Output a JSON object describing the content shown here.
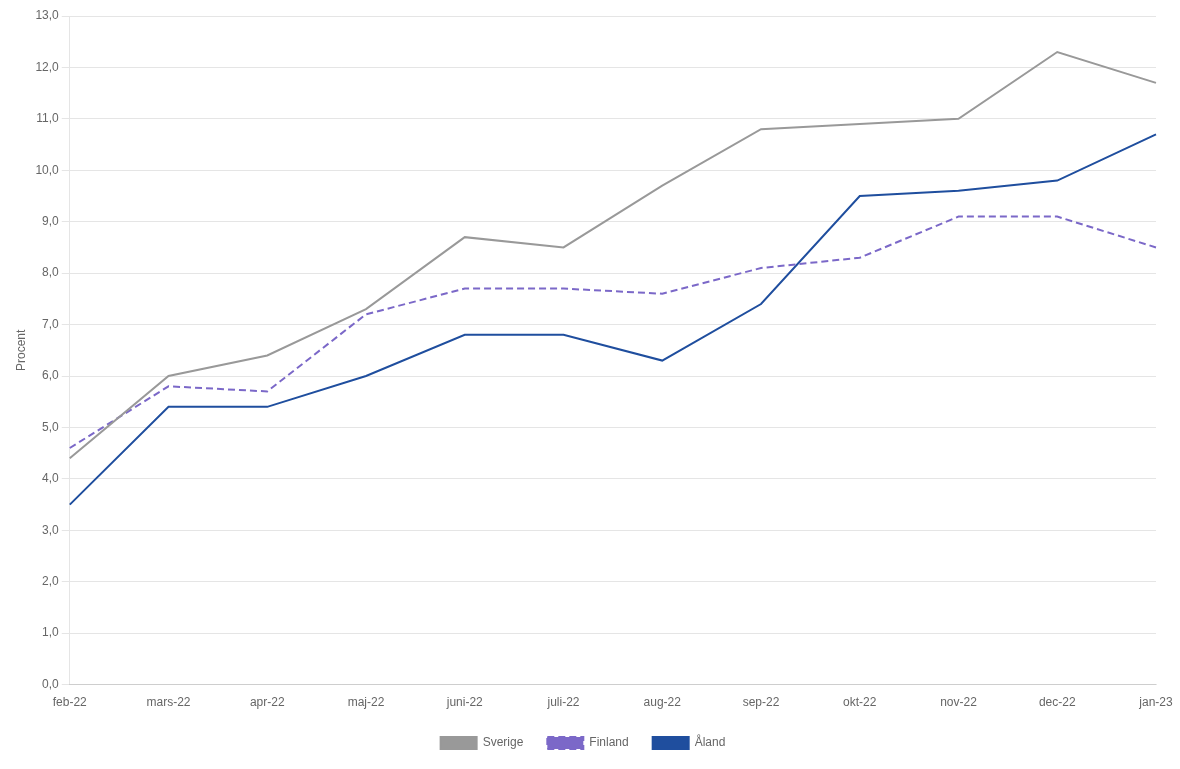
{
  "chart_data": {
    "type": "line",
    "ylabel": "Procent",
    "categories": [
      "feb-22",
      "mars-22",
      "apr-22",
      "maj-22",
      "juni-22",
      "juli-22",
      "aug-22",
      "sep-22",
      "okt-22",
      "nov-22",
      "dec-22",
      "jan-23"
    ],
    "series": [
      {
        "name": "Sverige",
        "color": "#999999",
        "line_style": "solid",
        "values": [
          4.4,
          6.0,
          6.4,
          7.3,
          8.7,
          8.5,
          9.7,
          10.8,
          10.9,
          11.0,
          12.3,
          11.7
        ]
      },
      {
        "name": "Finland",
        "color": "#7b68c8",
        "line_style": "dashed",
        "values": [
          4.6,
          5.8,
          5.7,
          7.2,
          7.7,
          7.7,
          7.6,
          8.1,
          8.3,
          9.1,
          9.1,
          8.5
        ]
      },
      {
        "name": "Åland",
        "color": "#1f4e9e",
        "line_style": "solid",
        "values": [
          3.5,
          5.4,
          5.4,
          6.0,
          6.8,
          6.8,
          6.3,
          7.4,
          9.5,
          9.6,
          9.8,
          10.7
        ]
      }
    ],
    "ylim": [
      0,
      13
    ],
    "yticks": [
      {
        "value": 0,
        "label": "0,0"
      },
      {
        "value": 1,
        "label": "1,0"
      },
      {
        "value": 2,
        "label": "2,0"
      },
      {
        "value": 3,
        "label": "3,0"
      },
      {
        "value": 4,
        "label": "4,0"
      },
      {
        "value": 5,
        "label": "5,0"
      },
      {
        "value": 6,
        "label": "6,0"
      },
      {
        "value": 7,
        "label": "7,0"
      },
      {
        "value": 8,
        "label": "8,0"
      },
      {
        "value": 9,
        "label": "9,0"
      },
      {
        "value": 10,
        "label": "10,0"
      },
      {
        "value": 11,
        "label": "11,0"
      },
      {
        "value": 12,
        "label": "12,0"
      },
      {
        "value": 13,
        "label": "13,0"
      }
    ],
    "grid": true,
    "legend": "bottom"
  }
}
